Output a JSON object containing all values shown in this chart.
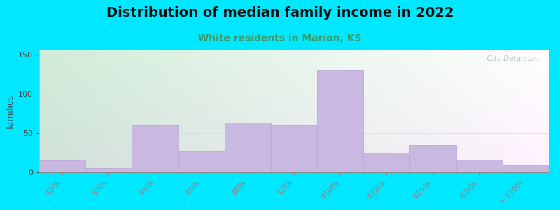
{
  "title": "Distribution of median family income in 2022",
  "subtitle": "White residents in Marion, KS",
  "ylabel": "families",
  "categories": [
    "$20k",
    "$30k",
    "$40k",
    "$50k",
    "$60k",
    "$75k",
    "$100k",
    "$125k",
    "$150k",
    "$200k",
    "> $200k"
  ],
  "values": [
    15,
    5,
    60,
    27,
    63,
    60,
    130,
    25,
    35,
    16,
    9
  ],
  "bar_color": "#c9b8e0",
  "bar_edge_color": "#c0a8d8",
  "ylim": [
    0,
    155
  ],
  "yticks": [
    0,
    50,
    100,
    150
  ],
  "background_outer": "#00e8ff",
  "background_inner_topleft": "#d0ecd8",
  "background_inner_right": "#f0f0f0",
  "title_fontsize": 14,
  "subtitle_fontsize": 10,
  "subtitle_color": "#3a9a6a",
  "watermark_text": "  City-Data.com",
  "watermark_color": "#b0b8c0"
}
